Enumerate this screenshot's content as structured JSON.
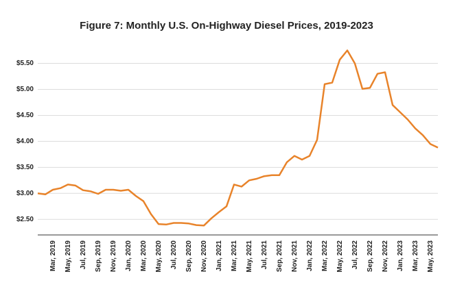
{
  "chart_data": {
    "type": "line",
    "title": "Figure 7: Monthly U.S. On-Highway Diesel Prices, 2019-2023",
    "categories": [
      null,
      null,
      "Mar, 2019",
      null,
      "May, 2019",
      null,
      "Jul, 2019",
      null,
      "Sep, 2019",
      null,
      "Nov, 2019",
      null,
      "Jan, 2020",
      null,
      "Mar, 2020",
      null,
      "May, 2020",
      null,
      "Jul, 2020",
      null,
      "Sep, 2020",
      null,
      "Nov, 2020",
      null,
      "Jan, 2021",
      null,
      "Mar, 2021",
      null,
      "May, 2021",
      null,
      "Jul, 2021",
      null,
      "Sep, 2021",
      null,
      "Nov, 2021",
      null,
      "Jan, 2022",
      null,
      "Mar, 2022",
      null,
      "May, 2022",
      null,
      "Jul, 2022",
      null,
      "Sep, 2022",
      null,
      "Nov, 2022",
      null,
      "Jan, 2023",
      null,
      "Mar, 2023",
      null,
      "May, 2023",
      null
    ],
    "values": [
      3.0,
      2.98,
      3.07,
      3.1,
      3.17,
      3.15,
      3.06,
      3.04,
      2.99,
      3.07,
      3.07,
      3.05,
      3.07,
      2.95,
      2.85,
      2.6,
      2.41,
      2.4,
      2.43,
      2.43,
      2.42,
      2.39,
      2.38,
      2.52,
      2.64,
      2.75,
      3.17,
      3.13,
      3.25,
      3.28,
      3.33,
      3.35,
      3.35,
      3.6,
      3.72,
      3.65,
      3.72,
      4.03,
      5.1,
      5.13,
      5.57,
      5.75,
      5.5,
      5.01,
      5.03,
      5.3,
      5.33,
      4.7,
      4.56,
      4.42,
      4.25,
      4.12,
      3.95,
      3.88
    ],
    "color": "#e8832a",
    "ylim": [
      2.2,
      5.85
    ],
    "yticks": [
      {
        "value": 2.5,
        "label": "$2.50"
      },
      {
        "value": 3,
        "label": "$3.00"
      },
      {
        "value": 3.5,
        "label": "$3.50"
      },
      {
        "value": 4,
        "label": "$4.00"
      },
      {
        "value": 4.5,
        "label": "$4.50"
      },
      {
        "value": 5,
        "label": "$5.00"
      },
      {
        "value": 5.5,
        "label": "$5.50"
      }
    ],
    "grid": true
  }
}
